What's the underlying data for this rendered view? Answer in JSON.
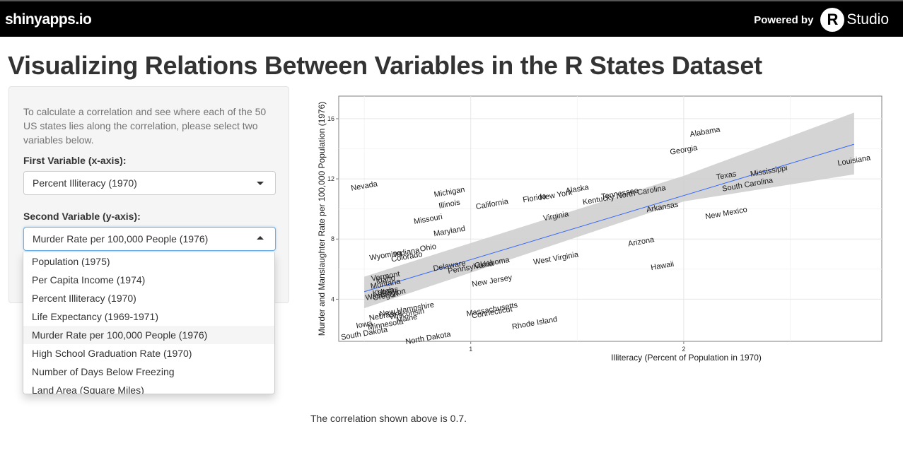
{
  "header": {
    "brand": "shinyapps.io",
    "powered_label": "Powered by",
    "rstudio_letter": "R",
    "rstudio_text": "Studio"
  },
  "page_title": "Visualizing Relations Between Variables in the R States Dataset",
  "sidebar": {
    "help_text": "To calculate a correlation and see where each of the 50 US states lies along the correlation, please select two variables below.",
    "first_label": "First Variable (x-axis):",
    "first_value": "Percent Illiteracy (1970)",
    "second_label": "Second Variable (y-axis):",
    "second_value": "Murder Rate per 100,000 People (1976)",
    "dropdown_options": [
      "Population (1975)",
      "Per Capita Income (1974)",
      "Percent Illiteracy (1970)",
      "Life Expectancy (1969-1971)",
      "Murder Rate per 100,000 People (1976)",
      "High School Graduation Rate (1970)",
      "Number of Days Below Freezing",
      "Land Area (Square Miles)"
    ],
    "dropdown_active_index": 4
  },
  "correlation_text": "The correlation shown above is 0.7.",
  "colors": {
    "header_bg": "#000000",
    "regression_line": "#3366ff",
    "confidence_band": "#cccccc"
  },
  "chart_data": {
    "type": "scatter",
    "xlabel": "Illiteracy (Percent of Population in 1970)",
    "ylabel": "Murder and Manslaughter Rate per 100,000 Population (1976)",
    "xlim": [
      0.38,
      2.93
    ],
    "ylim": [
      1.2,
      17.5
    ],
    "xticks": [
      1,
      2
    ],
    "yticks": [
      4,
      8,
      12,
      16
    ],
    "grid": true,
    "label_rotation_deg": -10,
    "regression": {
      "x": [
        0.5,
        2.8
      ],
      "y": [
        4.5,
        14.3
      ]
    },
    "confidence_band": {
      "x": [
        0.5,
        2.0,
        2.8
      ],
      "upper": [
        5.5,
        12.2,
        16.4
      ],
      "lower": [
        3.4,
        10.5,
        12.3
      ]
    },
    "points": [
      {
        "label": "Alabama",
        "x": 2.1,
        "y": 15.1
      },
      {
        "label": "Alaska",
        "x": 1.5,
        "y": 11.3
      },
      {
        "label": "Arizona",
        "x": 1.8,
        "y": 7.8
      },
      {
        "label": "Arkansas",
        "x": 1.9,
        "y": 10.1
      },
      {
        "label": "California",
        "x": 1.1,
        "y": 10.3
      },
      {
        "label": "Colorado",
        "x": 0.7,
        "y": 6.8
      },
      {
        "label": "Connecticut",
        "x": 1.1,
        "y": 3.1
      },
      {
        "label": "Delaware",
        "x": 0.9,
        "y": 6.2
      },
      {
        "label": "Florida",
        "x": 1.3,
        "y": 10.7
      },
      {
        "label": "Georgia",
        "x": 2.0,
        "y": 13.9
      },
      {
        "label": "Hawaii",
        "x": 1.9,
        "y": 6.2
      },
      {
        "label": "Idaho",
        "x": 0.6,
        "y": 5.3
      },
      {
        "label": "Illinois",
        "x": 0.9,
        "y": 10.3
      },
      {
        "label": "Indiana",
        "x": 0.7,
        "y": 7.1
      },
      {
        "label": "Iowa",
        "x": 0.5,
        "y": 2.3
      },
      {
        "label": "Kansas",
        "x": 0.6,
        "y": 4.5
      },
      {
        "label": "Kentucky",
        "x": 1.6,
        "y": 10.6
      },
      {
        "label": "Louisiana",
        "x": 2.8,
        "y": 13.2
      },
      {
        "label": "Maine",
        "x": 0.7,
        "y": 2.7
      },
      {
        "label": "Maryland",
        "x": 0.9,
        "y": 8.5
      },
      {
        "label": "Massachusetts",
        "x": 1.1,
        "y": 3.3
      },
      {
        "label": "Michigan",
        "x": 0.9,
        "y": 11.1
      },
      {
        "label": "Minnesota",
        "x": 0.6,
        "y": 2.3
      },
      {
        "label": "Mississippi",
        "x": 2.4,
        "y": 12.5
      },
      {
        "label": "Missouri",
        "x": 0.8,
        "y": 9.3
      },
      {
        "label": "Montana",
        "x": 0.6,
        "y": 5.0
      },
      {
        "label": "Nebraska",
        "x": 0.6,
        "y": 2.9
      },
      {
        "label": "Nevada",
        "x": 0.5,
        "y": 11.5
      },
      {
        "label": "New Hampshire",
        "x": 0.7,
        "y": 3.3
      },
      {
        "label": "New Jersey",
        "x": 1.1,
        "y": 5.2
      },
      {
        "label": "New Mexico",
        "x": 2.2,
        "y": 9.7
      },
      {
        "label": "New York",
        "x": 1.4,
        "y": 10.9
      },
      {
        "label": "North Carolina",
        "x": 1.8,
        "y": 11.1
      },
      {
        "label": "North Dakota",
        "x": 0.8,
        "y": 1.4
      },
      {
        "label": "Ohio",
        "x": 0.8,
        "y": 7.4
      },
      {
        "label": "Oklahoma",
        "x": 1.1,
        "y": 6.4
      },
      {
        "label": "Oregon",
        "x": 0.6,
        "y": 4.2
      },
      {
        "label": "Pennsylvania",
        "x": 1.0,
        "y": 6.1
      },
      {
        "label": "Rhode Island",
        "x": 1.3,
        "y": 2.4
      },
      {
        "label": "South Carolina",
        "x": 2.3,
        "y": 11.6
      },
      {
        "label": "South Dakota",
        "x": 0.5,
        "y": 1.7
      },
      {
        "label": "Tennessee",
        "x": 1.7,
        "y": 11.0
      },
      {
        "label": "Texas",
        "x": 2.2,
        "y": 12.2
      },
      {
        "label": "Utah",
        "x": 0.6,
        "y": 4.5
      },
      {
        "label": "Vermont",
        "x": 0.6,
        "y": 5.5
      },
      {
        "label": "Virginia",
        "x": 1.4,
        "y": 9.5
      },
      {
        "label": "Washington",
        "x": 0.6,
        "y": 4.3
      },
      {
        "label": "West Virginia",
        "x": 1.4,
        "y": 6.7
      },
      {
        "label": "Wisconsin",
        "x": 0.7,
        "y": 3.0
      },
      {
        "label": "Wyoming",
        "x": 0.6,
        "y": 6.9
      }
    ]
  }
}
